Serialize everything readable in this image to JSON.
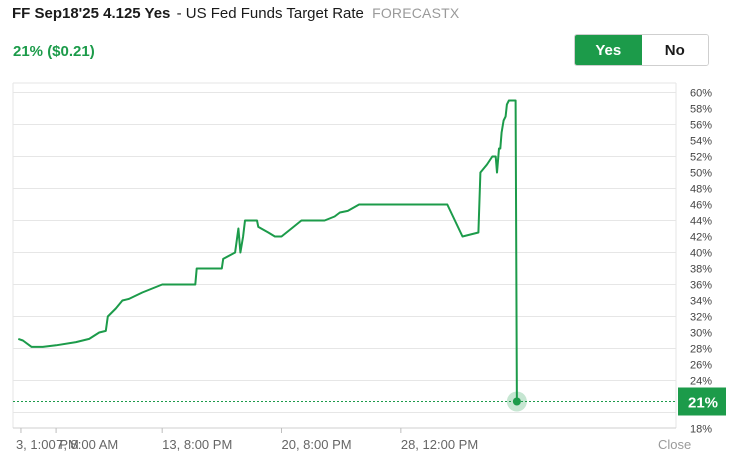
{
  "header": {
    "market_code": "FF Sep18'25 4.125 Yes",
    "market_name": "- US Fed Funds Target Rate",
    "source": "FORECASTX"
  },
  "price": {
    "display": "21% ($0.21)"
  },
  "toggle": {
    "yes_label": "Yes",
    "no_label": "No",
    "selected": "Yes"
  },
  "colors": {
    "accent": "#1c9b4a",
    "grid": "#e6e6e6"
  },
  "chart_data": {
    "type": "line",
    "title": "",
    "ylim": [
      18,
      61
    ],
    "y_ticks": [
      60,
      58,
      56,
      54,
      52,
      50,
      48,
      46,
      44,
      42,
      40,
      38,
      36,
      34,
      32,
      30,
      28,
      26,
      24,
      22,
      20,
      18
    ],
    "y_tick_labels": [
      "60%",
      "58%",
      "56%",
      "54%",
      "52%",
      "50%",
      "48%",
      "46%",
      "44%",
      "42%",
      "40%",
      "38%",
      "36%",
      "34%",
      "32%",
      "30%",
      "28%",
      "26%",
      "24%",
      "22%",
      "20%",
      "18%"
    ],
    "x_range": [
      0,
      100
    ],
    "x_ticks": [
      {
        "label": "3, 1:00 PM",
        "x": 1.2
      },
      {
        "label": "7, 8:00 AM",
        "x": 6.5
      },
      {
        "label": "13, 8:00 PM",
        "x": 22.5
      },
      {
        "label": "20, 8:00 PM",
        "x": 40.5
      },
      {
        "label": "28, 12:00 PM",
        "x": 58.5
      }
    ],
    "close_label": "Close",
    "current_value": 21,
    "current_label": "21%",
    "series": [
      {
        "name": "Yes",
        "points": [
          [
            0.8,
            29.2
          ],
          [
            1.5,
            29
          ],
          [
            2.8,
            28.2
          ],
          [
            4.5,
            28.2
          ],
          [
            6.5,
            28.4
          ],
          [
            9.5,
            28.8
          ],
          [
            11.5,
            29.2
          ],
          [
            13,
            30
          ],
          [
            14,
            30.2
          ],
          [
            14.3,
            32
          ],
          [
            15.5,
            33
          ],
          [
            16.5,
            34
          ],
          [
            17.5,
            34.2
          ],
          [
            19.5,
            35
          ],
          [
            22.5,
            36
          ],
          [
            27.5,
            36
          ],
          [
            27.7,
            38
          ],
          [
            31.5,
            38
          ],
          [
            31.7,
            39.2
          ],
          [
            33.5,
            40
          ],
          [
            34,
            43
          ],
          [
            34.3,
            40
          ],
          [
            34.7,
            42
          ],
          [
            35,
            44
          ],
          [
            36.8,
            44
          ],
          [
            37,
            43.2
          ],
          [
            38.5,
            42.5
          ],
          [
            39.5,
            42
          ],
          [
            40.5,
            42
          ],
          [
            42,
            43
          ],
          [
            43.5,
            44
          ],
          [
            47,
            44
          ],
          [
            48.5,
            44.5
          ],
          [
            49.3,
            45
          ],
          [
            50.5,
            45.2
          ],
          [
            52.2,
            46
          ],
          [
            65.5,
            46
          ],
          [
            67.8,
            42
          ],
          [
            70.2,
            42.5
          ],
          [
            70.5,
            50
          ],
          [
            71.5,
            51
          ],
          [
            72.3,
            52
          ],
          [
            72.8,
            52
          ],
          [
            73,
            50
          ],
          [
            73.3,
            53
          ],
          [
            73.5,
            53
          ],
          [
            73.7,
            55
          ],
          [
            74,
            56.5
          ],
          [
            74.3,
            57
          ],
          [
            74.5,
            58.5
          ],
          [
            74.8,
            59
          ],
          [
            75.8,
            59
          ],
          [
            76,
            21
          ]
        ]
      }
    ]
  }
}
